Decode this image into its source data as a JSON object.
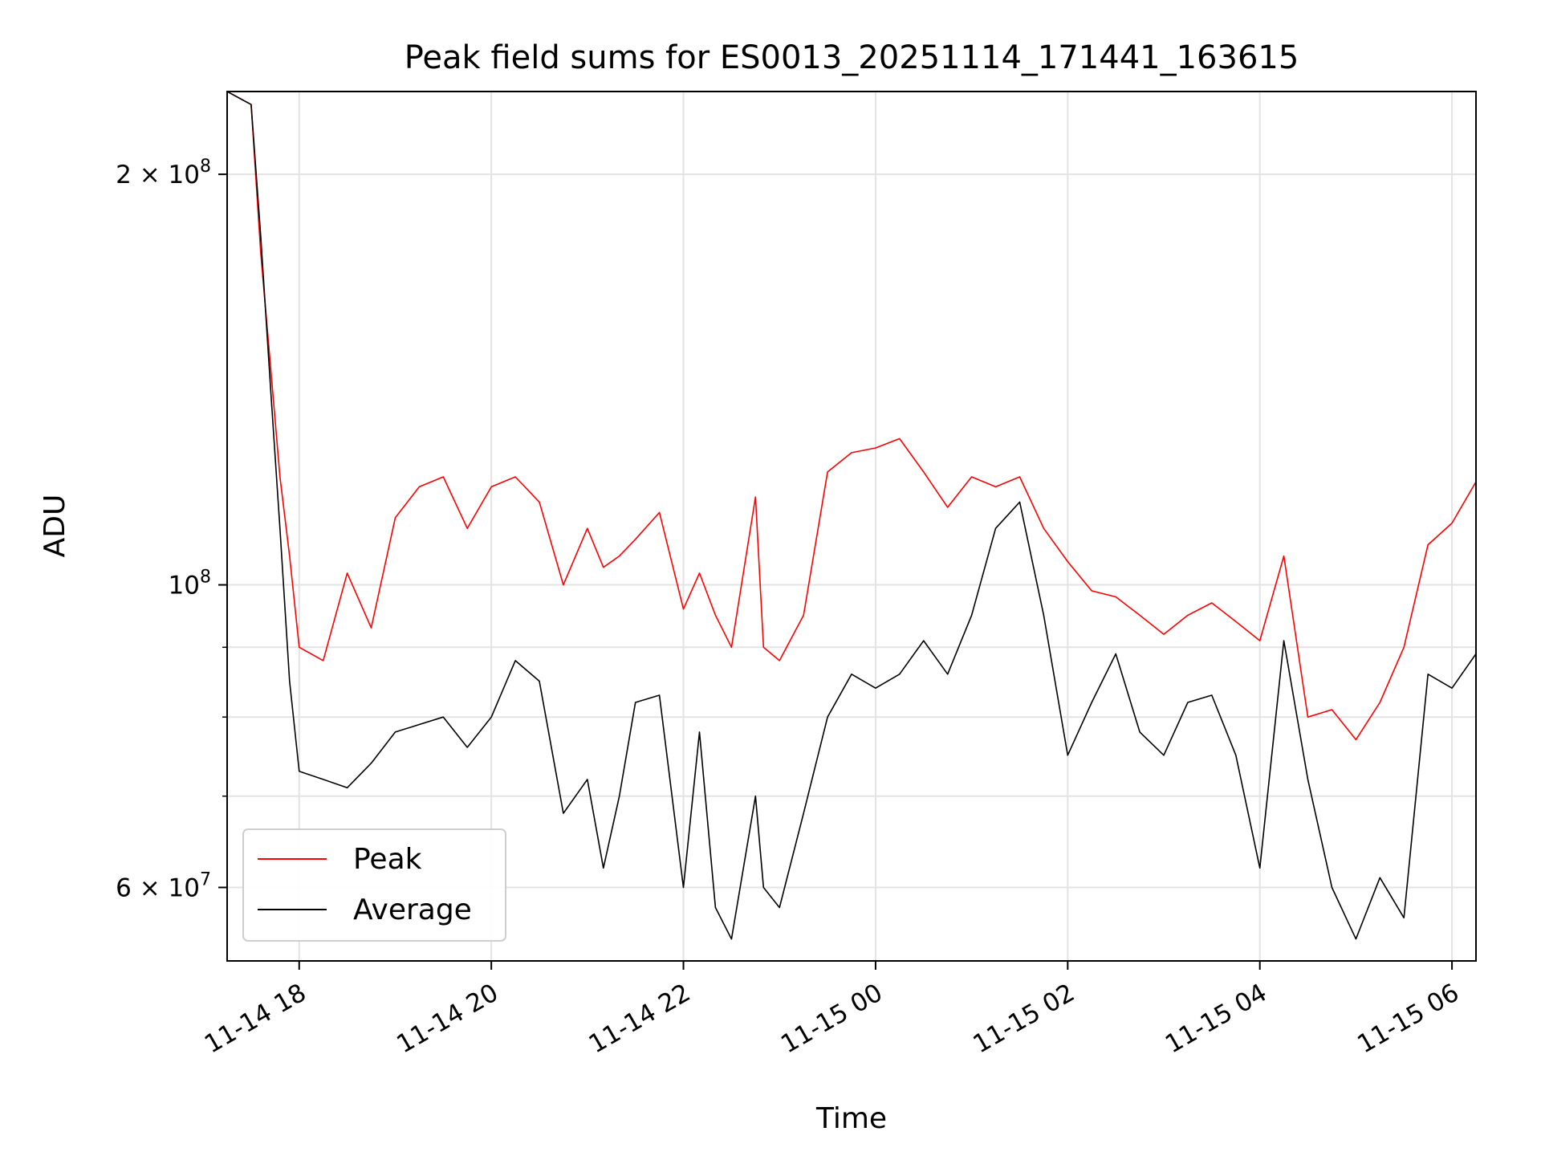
{
  "chart_data": {
    "type": "line",
    "title": "Peak field sums for ES0013_20251114_171441_163615",
    "xlabel": "Time",
    "ylabel": "ADU",
    "y_scale": "log",
    "ylim": [
      53000000,
      230000000
    ],
    "xlim": [
      "2025-11-14 17:15",
      "2025-11-15 06:15"
    ],
    "grid": true,
    "legend_position": "lower-left",
    "x_ticks": [
      {
        "t": "2025-11-14 18:00",
        "label": "11-14 18"
      },
      {
        "t": "2025-11-14 20:00",
        "label": "11-14 20"
      },
      {
        "t": "2025-11-14 22:00",
        "label": "11-14 22"
      },
      {
        "t": "2025-11-15 00:00",
        "label": "11-15 00"
      },
      {
        "t": "2025-11-15 02:00",
        "label": "11-15 02"
      },
      {
        "t": "2025-11-15 04:00",
        "label": "11-15 04"
      },
      {
        "t": "2025-11-15 06:00",
        "label": "11-15 06"
      }
    ],
    "y_major_ticks": [
      {
        "value": 60000000,
        "label": "6 × 10⁷",
        "base": "6 × 10",
        "exp": "7"
      },
      {
        "value": 100000000,
        "label": "10⁸",
        "base": "10",
        "exp": "8"
      },
      {
        "value": 200000000,
        "label": "2 × 10⁸",
        "base": "2 × 10",
        "exp": "8"
      }
    ],
    "y_minor_ticks": [
      70000000,
      80000000,
      90000000
    ],
    "series": [
      {
        "name": "Average",
        "color": "#000000",
        "points": [
          [
            "2025-11-14 17:15",
            230000000
          ],
          [
            "2025-11-14 17:30",
            225000000
          ],
          [
            "2025-11-14 17:36",
            180000000
          ],
          [
            "2025-11-14 17:42",
            140000000
          ],
          [
            "2025-11-14 17:48",
            110000000
          ],
          [
            "2025-11-14 17:54",
            85000000
          ],
          [
            "2025-11-14 18:00",
            73000000
          ],
          [
            "2025-11-14 18:15",
            72000000
          ],
          [
            "2025-11-14 18:30",
            71000000
          ],
          [
            "2025-11-14 18:45",
            74000000
          ],
          [
            "2025-11-14 19:00",
            78000000
          ],
          [
            "2025-11-14 19:15",
            79000000
          ],
          [
            "2025-11-14 19:30",
            80000000
          ],
          [
            "2025-11-14 19:45",
            76000000
          ],
          [
            "2025-11-14 20:00",
            80000000
          ],
          [
            "2025-11-14 20:15",
            88000000
          ],
          [
            "2025-11-14 20:30",
            85000000
          ],
          [
            "2025-11-14 20:45",
            68000000
          ],
          [
            "2025-11-14 21:00",
            72000000
          ],
          [
            "2025-11-14 21:10",
            62000000
          ],
          [
            "2025-11-14 21:20",
            70000000
          ],
          [
            "2025-11-14 21:30",
            82000000
          ],
          [
            "2025-11-14 21:45",
            83000000
          ],
          [
            "2025-11-14 22:00",
            60000000
          ],
          [
            "2025-11-14 22:10",
            78000000
          ],
          [
            "2025-11-14 22:20",
            58000000
          ],
          [
            "2025-11-14 22:30",
            55000000
          ],
          [
            "2025-11-14 22:45",
            70000000
          ],
          [
            "2025-11-14 22:50",
            60000000
          ],
          [
            "2025-11-14 23:00",
            58000000
          ],
          [
            "2025-11-14 23:15",
            68000000
          ],
          [
            "2025-11-14 23:30",
            80000000
          ],
          [
            "2025-11-14 23:45",
            86000000
          ],
          [
            "2025-11-15 00:00",
            84000000
          ],
          [
            "2025-11-15 00:15",
            86000000
          ],
          [
            "2025-11-15 00:30",
            91000000
          ],
          [
            "2025-11-15 00:45",
            86000000
          ],
          [
            "2025-11-15 01:00",
            95000000
          ],
          [
            "2025-11-15 01:15",
            110000000
          ],
          [
            "2025-11-15 01:30",
            115000000
          ],
          [
            "2025-11-15 01:45",
            95000000
          ],
          [
            "2025-11-15 02:00",
            75000000
          ],
          [
            "2025-11-15 02:15",
            82000000
          ],
          [
            "2025-11-15 02:30",
            89000000
          ],
          [
            "2025-11-15 02:45",
            78000000
          ],
          [
            "2025-11-15 03:00",
            75000000
          ],
          [
            "2025-11-15 03:15",
            82000000
          ],
          [
            "2025-11-15 03:30",
            83000000
          ],
          [
            "2025-11-15 03:45",
            75000000
          ],
          [
            "2025-11-15 04:00",
            62000000
          ],
          [
            "2025-11-15 04:15",
            91000000
          ],
          [
            "2025-11-15 04:30",
            72000000
          ],
          [
            "2025-11-15 04:45",
            60000000
          ],
          [
            "2025-11-15 05:00",
            55000000
          ],
          [
            "2025-11-15 05:15",
            61000000
          ],
          [
            "2025-11-15 05:30",
            57000000
          ],
          [
            "2025-11-15 05:45",
            86000000
          ],
          [
            "2025-11-15 06:00",
            84000000
          ],
          [
            "2025-11-15 06:15",
            89000000
          ]
        ]
      },
      {
        "name": "Peak",
        "color": "#ff0000",
        "points": [
          [
            "2025-11-14 17:15",
            230000000
          ],
          [
            "2025-11-14 17:30",
            225000000
          ],
          [
            "2025-11-14 17:36",
            175000000
          ],
          [
            "2025-11-14 17:42",
            145000000
          ],
          [
            "2025-11-14 17:48",
            120000000
          ],
          [
            "2025-11-14 17:54",
            105000000
          ],
          [
            "2025-11-14 18:00",
            90000000
          ],
          [
            "2025-11-14 18:15",
            88000000
          ],
          [
            "2025-11-14 18:30",
            102000000
          ],
          [
            "2025-11-14 18:45",
            93000000
          ],
          [
            "2025-11-14 19:00",
            112000000
          ],
          [
            "2025-11-14 19:15",
            118000000
          ],
          [
            "2025-11-14 19:30",
            120000000
          ],
          [
            "2025-11-14 19:45",
            110000000
          ],
          [
            "2025-11-14 20:00",
            118000000
          ],
          [
            "2025-11-14 20:15",
            120000000
          ],
          [
            "2025-11-14 20:30",
            115000000
          ],
          [
            "2025-11-14 20:45",
            100000000
          ],
          [
            "2025-11-14 21:00",
            110000000
          ],
          [
            "2025-11-14 21:10",
            103000000
          ],
          [
            "2025-11-14 21:20",
            105000000
          ],
          [
            "2025-11-14 21:30",
            108000000
          ],
          [
            "2025-11-14 21:45",
            113000000
          ],
          [
            "2025-11-14 22:00",
            96000000
          ],
          [
            "2025-11-14 22:10",
            102000000
          ],
          [
            "2025-11-14 22:20",
            95000000
          ],
          [
            "2025-11-14 22:30",
            90000000
          ],
          [
            "2025-11-14 22:45",
            116000000
          ],
          [
            "2025-11-14 22:50",
            90000000
          ],
          [
            "2025-11-14 23:00",
            88000000
          ],
          [
            "2025-11-14 23:15",
            95000000
          ],
          [
            "2025-11-14 23:30",
            121000000
          ],
          [
            "2025-11-14 23:45",
            125000000
          ],
          [
            "2025-11-15 00:00",
            126000000
          ],
          [
            "2025-11-15 00:15",
            128000000
          ],
          [
            "2025-11-15 00:30",
            121000000
          ],
          [
            "2025-11-15 00:45",
            114000000
          ],
          [
            "2025-11-15 01:00",
            120000000
          ],
          [
            "2025-11-15 01:15",
            118000000
          ],
          [
            "2025-11-15 01:30",
            120000000
          ],
          [
            "2025-11-15 01:45",
            110000000
          ],
          [
            "2025-11-15 02:00",
            104000000
          ],
          [
            "2025-11-15 02:15",
            99000000
          ],
          [
            "2025-11-15 02:30",
            98000000
          ],
          [
            "2025-11-15 02:45",
            95000000
          ],
          [
            "2025-11-15 03:00",
            92000000
          ],
          [
            "2025-11-15 03:15",
            95000000
          ],
          [
            "2025-11-15 03:30",
            97000000
          ],
          [
            "2025-11-15 03:45",
            94000000
          ],
          [
            "2025-11-15 04:00",
            91000000
          ],
          [
            "2025-11-15 04:15",
            105000000
          ],
          [
            "2025-11-15 04:30",
            80000000
          ],
          [
            "2025-11-15 04:45",
            81000000
          ],
          [
            "2025-11-15 05:00",
            77000000
          ],
          [
            "2025-11-15 05:15",
            82000000
          ],
          [
            "2025-11-15 05:30",
            90000000
          ],
          [
            "2025-11-15 05:45",
            107000000
          ],
          [
            "2025-11-15 06:00",
            111000000
          ],
          [
            "2025-11-15 06:15",
            119000000
          ]
        ]
      }
    ]
  }
}
